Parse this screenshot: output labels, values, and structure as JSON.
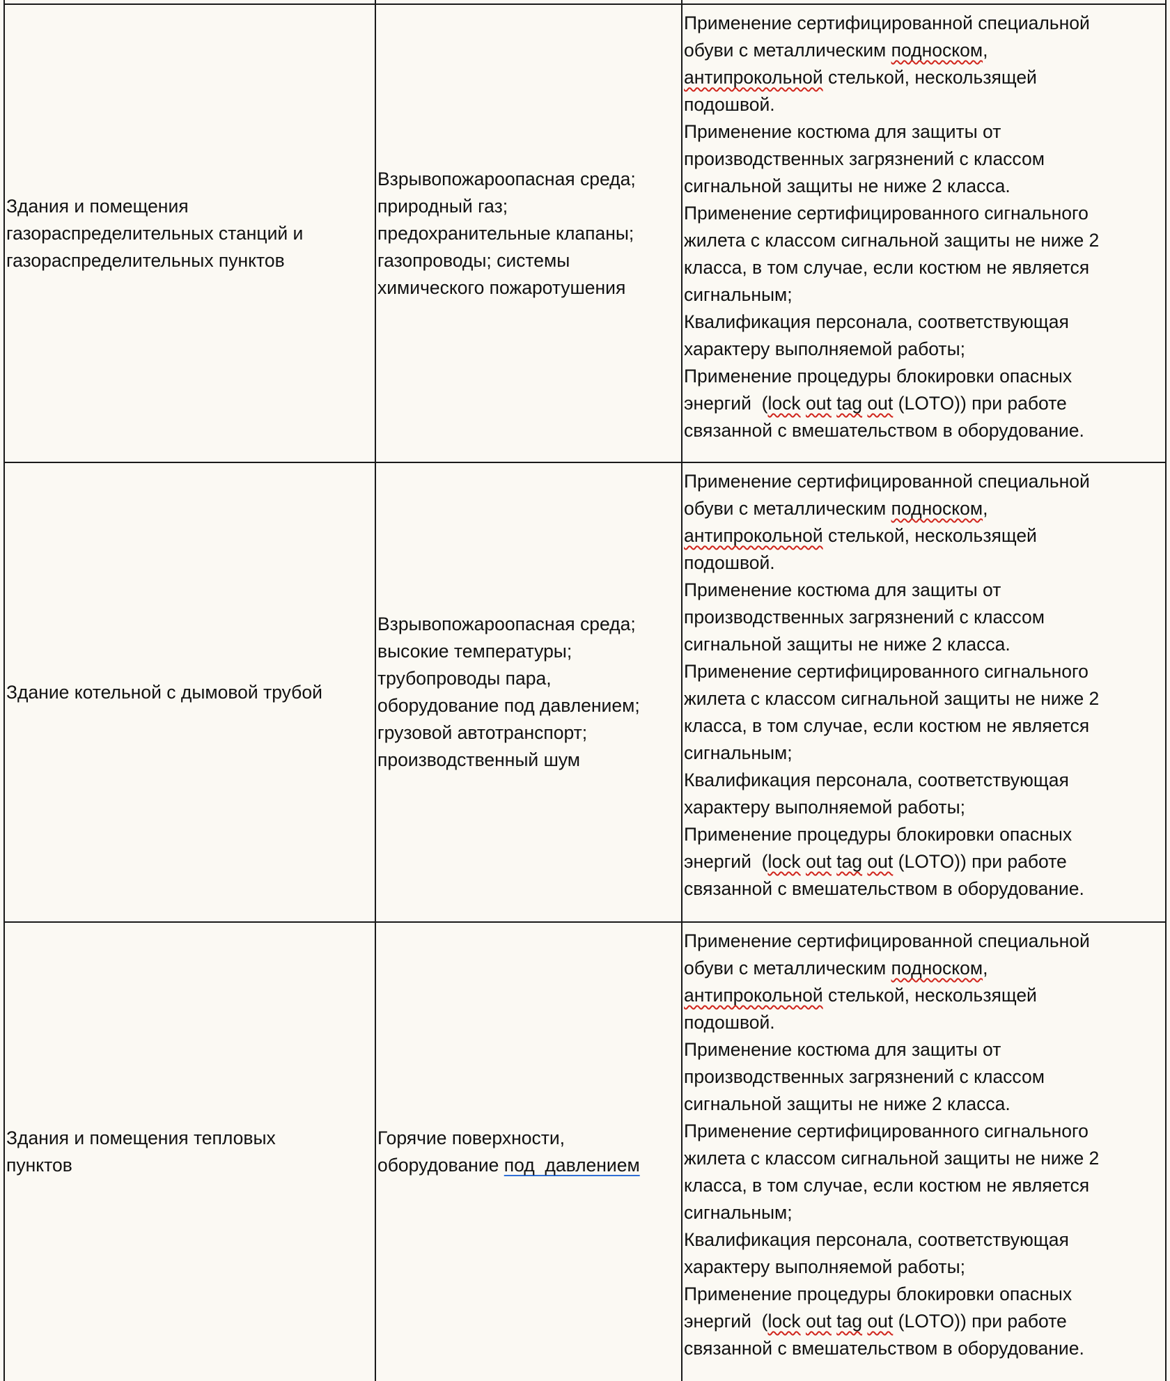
{
  "colors": {
    "background": "#fbf9f3",
    "border": "#1a1a1a",
    "spelling_mark": "#d0241b",
    "link_underline": "#2f6fd6"
  },
  "rows": [
    {
      "object": [
        "Здания и помещения",
        "газораспределительных станций и",
        "газораспределительных пунктов"
      ],
      "hazards": [
        [
          "Взрывопожароопасная среда;"
        ],
        [
          "природный газ;"
        ],
        [
          "предохранительные клапаны;"
        ],
        [
          "газопроводы; системы"
        ],
        [
          "химического пожаротушения"
        ]
      ],
      "measures": [
        [
          "Применение сертифицированной специальной"
        ],
        [
          "обуви с металлическим ",
          {
            "text": "подноском",
            "mark": "spelling"
          },
          ","
        ],
        [
          {
            "text": "антипрокольной",
            "mark": "spelling"
          },
          " стелькой, нескользящей"
        ],
        [
          "подошвой."
        ],
        [
          "Применение костюма для защиты от"
        ],
        [
          "производственных загрязнений с классом"
        ],
        [
          "сигнальной защиты не ниже 2 класса."
        ],
        [
          "Применение сертифицированного сигнального"
        ],
        [
          "жилета с классом сигнальной защиты не ниже 2"
        ],
        [
          "класса, в том случае, если костюм не является"
        ],
        [
          "сигнальным;"
        ],
        [
          "Квалификация персонала, соответствующая"
        ],
        [
          "характеру выполняемой работы;"
        ],
        [
          "Применение процедуры блокировки опасных"
        ],
        [
          "энергий  (",
          {
            "text": "lock",
            "mark": "spelling"
          },
          " ",
          {
            "text": "out",
            "mark": "spelling"
          },
          " ",
          {
            "text": "tag",
            "mark": "spelling"
          },
          " ",
          {
            "text": "out",
            "mark": "spelling"
          },
          " (LOTO)) при работе"
        ],
        [
          "связанной с вмешательством в оборудование."
        ]
      ]
    },
    {
      "object": [
        "Здание котельной с дымовой трубой"
      ],
      "hazards": [
        [
          "Взрывопожароопасная среда;"
        ],
        [
          "высокие температуры;"
        ],
        [
          "трубопроводы пара,"
        ],
        [
          "оборудование под давлением;"
        ],
        [
          "грузовой автотранспорт;"
        ],
        [
          "производственный шум"
        ]
      ],
      "measures": [
        [
          "Применение сертифицированной специальной"
        ],
        [
          "обуви с металлическим ",
          {
            "text": "подноском",
            "mark": "spelling"
          },
          ","
        ],
        [
          {
            "text": "антипрокольной",
            "mark": "spelling"
          },
          " стелькой, нескользящей"
        ],
        [
          "подошвой."
        ],
        [
          "Применение костюма для защиты от"
        ],
        [
          "производственных загрязнений с классом"
        ],
        [
          "сигнальной защиты не ниже 2 класса."
        ],
        [
          "Применение сертифицированного сигнального"
        ],
        [
          "жилета с классом сигнальной защиты не ниже 2"
        ],
        [
          "класса, в том случае, если костюм не является"
        ],
        [
          "сигнальным;"
        ],
        [
          "Квалификация персонала, соответствующая"
        ],
        [
          "характеру выполняемой работы;"
        ],
        [
          "Применение процедуры блокировки опасных"
        ],
        [
          "энергий  (",
          {
            "text": "lock",
            "mark": "spelling"
          },
          " ",
          {
            "text": "out",
            "mark": "spelling"
          },
          " ",
          {
            "text": "tag",
            "mark": "spelling"
          },
          " ",
          {
            "text": "out",
            "mark": "spelling"
          },
          " (LOTO)) при работе"
        ],
        [
          "связанной с вмешательством в оборудование."
        ]
      ]
    },
    {
      "object": [
        "Здания и помещения тепловых",
        "пунктов"
      ],
      "hazards": [
        [
          "Горячие поверхности,"
        ],
        [
          "оборудование ",
          {
            "text": "под  давлением",
            "mark": "link"
          }
        ]
      ],
      "measures": [
        [
          "Применение сертифицированной специальной"
        ],
        [
          "обуви с металлическим ",
          {
            "text": "подноском",
            "mark": "spelling"
          },
          ","
        ],
        [
          {
            "text": "антипрокольной",
            "mark": "spelling"
          },
          " стелькой, нескользящей"
        ],
        [
          "подошвой."
        ],
        [
          "Применение костюма для защиты от"
        ],
        [
          "производственных загрязнений с классом"
        ],
        [
          "сигнальной защиты не ниже 2 класса."
        ],
        [
          "Применение сертифицированного сигнального"
        ],
        [
          "жилета с классом сигнальной защиты не ниже 2"
        ],
        [
          "класса, в том случае, если костюм не является"
        ],
        [
          "сигнальным;"
        ],
        [
          "Квалификация персонала, соответствующая"
        ],
        [
          "характеру выполняемой работы;"
        ],
        [
          "Применение процедуры блокировки опасных"
        ],
        [
          "энергий  (",
          {
            "text": "lock",
            "mark": "spelling"
          },
          " ",
          {
            "text": "out",
            "mark": "spelling"
          },
          " ",
          {
            "text": "tag",
            "mark": "spelling"
          },
          " ",
          {
            "text": "out",
            "mark": "spelling"
          },
          " (LOTO)) при работе"
        ],
        [
          "связанной с вмешательством в оборудование."
        ]
      ]
    }
  ]
}
